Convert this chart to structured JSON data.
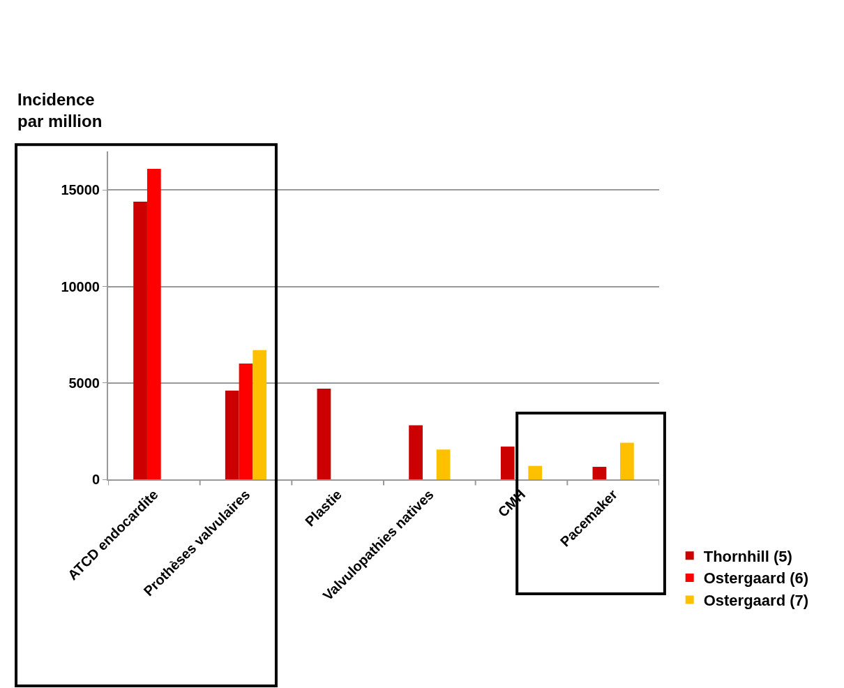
{
  "chart_data": {
    "type": "bar",
    "ylabel": "Incidence\npar million",
    "categories": [
      "ATCD endocardite",
      "Prothèses valvulaires",
      "Plastie",
      "Valvulopathies natives",
      "CMH",
      "Pacemaker"
    ],
    "series": [
      {
        "name": "Thornhill (5)",
        "color": "#cc0000",
        "values": [
          14400,
          4600,
          4700,
          2800,
          1700,
          650
        ]
      },
      {
        "name": "Ostergaard (6)",
        "color": "#ff0000",
        "values": [
          16100,
          6000,
          null,
          null,
          null,
          null
        ]
      },
      {
        "name": "Ostergaard (7)",
        "color": "#ffc000",
        "values": [
          null,
          6700,
          null,
          1550,
          700,
          1900
        ]
      }
    ],
    "ylim": [
      0,
      17000
    ],
    "yticks": [
      0,
      5000,
      10000,
      15000
    ],
    "grid": "y",
    "legend": "bottom right"
  }
}
